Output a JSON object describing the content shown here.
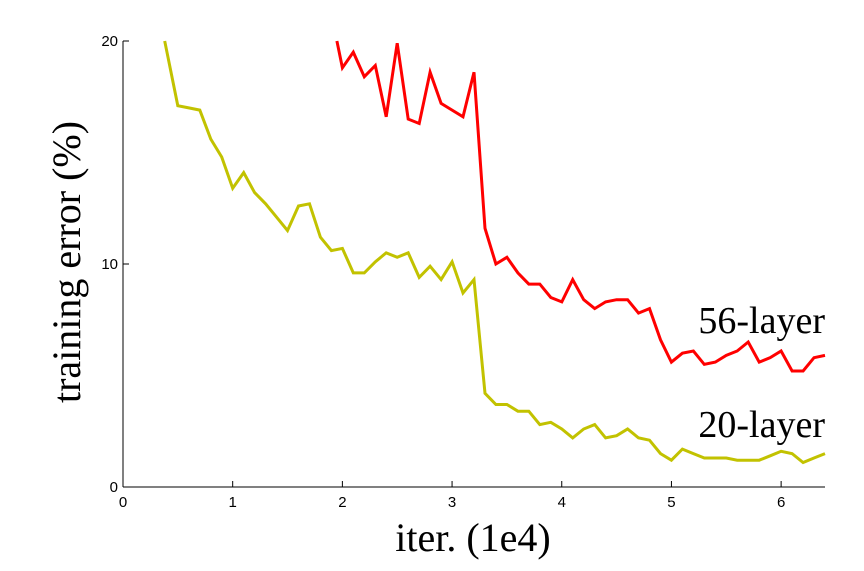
{
  "chart_data": {
    "type": "line",
    "xlabel": "iter. (1e4)",
    "ylabel": "training error (%)",
    "xlim": [
      0,
      6.4
    ],
    "ylim": [
      0,
      20
    ],
    "xticks": [
      "0",
      "1",
      "2",
      "3",
      "4",
      "5",
      "6"
    ],
    "yticks": [
      "0",
      "10",
      "20"
    ],
    "grid": false,
    "legend": "inline labels at right end of each curve",
    "series": [
      {
        "name": "56-layer",
        "color": "#ff0000",
        "x": [
          1.95,
          2.0,
          2.1,
          2.2,
          2.3,
          2.4,
          2.5,
          2.6,
          2.7,
          2.8,
          2.9,
          3.0,
          3.1,
          3.2,
          3.3,
          3.4,
          3.5,
          3.6,
          3.7,
          3.8,
          3.9,
          4.0,
          4.1,
          4.2,
          4.3,
          4.4,
          4.5,
          4.6,
          4.7,
          4.8,
          4.9,
          5.0,
          5.1,
          5.2,
          5.3,
          5.4,
          5.5,
          5.6,
          5.7,
          5.8,
          5.9,
          6.0,
          6.1,
          6.2,
          6.3,
          6.4
        ],
        "values": [
          20.0,
          18.8,
          19.5,
          18.4,
          18.9,
          16.6,
          19.9,
          16.5,
          16.3,
          18.6,
          17.2,
          16.9,
          16.6,
          18.6,
          11.6,
          10.0,
          10.3,
          9.6,
          9.1,
          9.1,
          8.5,
          8.3,
          9.3,
          8.4,
          8.0,
          8.3,
          8.4,
          8.4,
          7.8,
          8.0,
          6.6,
          5.6,
          6.0,
          6.1,
          5.5,
          5.6,
          5.9,
          6.1,
          6.5,
          5.6,
          5.8,
          6.1,
          5.2,
          5.2,
          5.8,
          5.9
        ]
      },
      {
        "name": "20-layer",
        "color": "#c2c200",
        "x": [
          0.38,
          0.5,
          0.6,
          0.7,
          0.8,
          0.9,
          1.0,
          1.1,
          1.2,
          1.3,
          1.4,
          1.5,
          1.6,
          1.7,
          1.8,
          1.9,
          2.0,
          2.1,
          2.2,
          2.3,
          2.4,
          2.5,
          2.6,
          2.7,
          2.8,
          2.9,
          3.0,
          3.1,
          3.2,
          3.3,
          3.4,
          3.5,
          3.6,
          3.7,
          3.8,
          3.9,
          4.0,
          4.1,
          4.2,
          4.3,
          4.4,
          4.5,
          4.6,
          4.7,
          4.8,
          4.9,
          5.0,
          5.1,
          5.2,
          5.3,
          5.4,
          5.5,
          5.6,
          5.7,
          5.8,
          5.9,
          6.0,
          6.1,
          6.2,
          6.3,
          6.4
        ],
        "values": [
          20.0,
          17.1,
          17.0,
          16.9,
          15.6,
          14.8,
          13.4,
          14.1,
          13.2,
          12.7,
          12.1,
          11.5,
          12.6,
          12.7,
          11.2,
          10.6,
          10.7,
          9.6,
          9.6,
          10.1,
          10.5,
          10.3,
          10.5,
          9.4,
          9.9,
          9.3,
          10.1,
          8.7,
          9.3,
          4.2,
          3.7,
          3.7,
          3.4,
          3.4,
          2.8,
          2.9,
          2.6,
          2.2,
          2.6,
          2.8,
          2.2,
          2.3,
          2.6,
          2.2,
          2.1,
          1.5,
          1.2,
          1.7,
          1.5,
          1.3,
          1.3,
          1.3,
          1.2,
          1.2,
          1.2,
          1.4,
          1.6,
          1.5,
          1.1,
          1.3,
          1.5
        ]
      }
    ]
  }
}
